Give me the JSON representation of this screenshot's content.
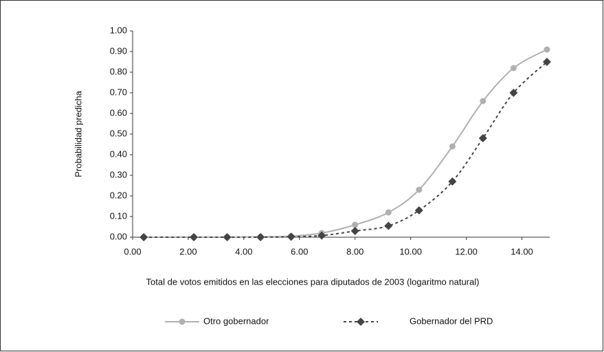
{
  "chart_data": {
    "type": "line",
    "xlabel": "Total de votos emitidos en las elecciones para diputados de 2003 (logaritmo natural)",
    "ylabel": "Probabilidad predicha",
    "xlim": [
      0,
      15
    ],
    "ylim": [
      0,
      1
    ],
    "xticks": [
      {
        "value": 0,
        "label": "0.00"
      },
      {
        "value": 2,
        "label": "2.00"
      },
      {
        "value": 4,
        "label": "4.00"
      },
      {
        "value": 6,
        "label": "6.00"
      },
      {
        "value": 8,
        "label": "8.00"
      },
      {
        "value": 10,
        "label": "10.00"
      },
      {
        "value": 12,
        "label": "12.00"
      },
      {
        "value": 14,
        "label": "14.00"
      }
    ],
    "yticks": [
      {
        "value": 0,
        "label": "0.00"
      },
      {
        "value": 0.1,
        "label": "0.10"
      },
      {
        "value": 0.2,
        "label": "0.20"
      },
      {
        "value": 0.3,
        "label": "0.30"
      },
      {
        "value": 0.4,
        "label": "0.40"
      },
      {
        "value": 0.5,
        "label": "0.50"
      },
      {
        "value": 0.6,
        "label": "0.60"
      },
      {
        "value": 0.7,
        "label": "0.70"
      },
      {
        "value": 0.8,
        "label": "0.80"
      },
      {
        "value": 0.9,
        "label": "0.90"
      },
      {
        "value": 1,
        "label": "1.00"
      }
    ],
    "x": [
      0.4,
      2.2,
      3.4,
      4.6,
      5.7,
      6.8,
      8.0,
      9.2,
      10.3,
      11.5,
      12.6,
      13.7,
      14.9
    ],
    "series": [
      {
        "name": "Otro gobernador",
        "color": "#b0b0b0",
        "marker": "circle",
        "dash": false,
        "values": [
          0,
          0,
          0,
          0.002,
          0.005,
          0.02,
          0.06,
          0.12,
          0.23,
          0.44,
          0.66,
          0.82,
          0.91
        ]
      },
      {
        "name": "Gobernador del PRD",
        "color": "#444444",
        "marker": "diamond",
        "dash": true,
        "values": [
          0,
          0,
          0,
          0,
          0.002,
          0.008,
          0.03,
          0.055,
          0.13,
          0.27,
          0.48,
          0.7,
          0.85
        ]
      }
    ]
  }
}
